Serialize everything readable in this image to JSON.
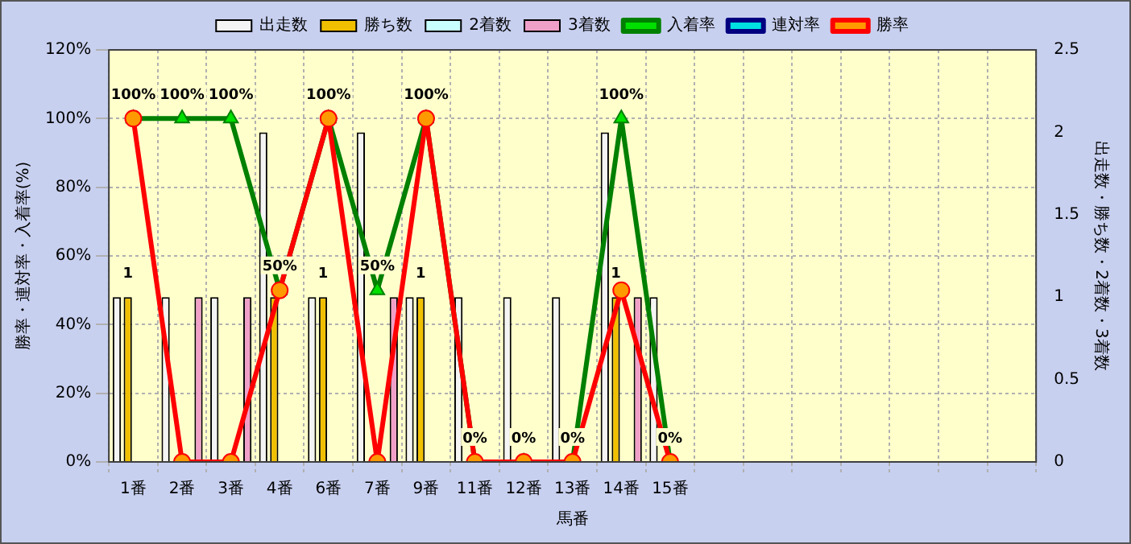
{
  "chart_data": {
    "type": "bar",
    "xlabel": "馬番",
    "ylabel": "勝率・連対率・入着率(%)",
    "y2label": "出走数・勝ち数・2着数・3着数",
    "categories": [
      "1番",
      "2番",
      "3番",
      "4番",
      "6番",
      "7番",
      "9番",
      "11番",
      "12番",
      "13番",
      "14番",
      "15番",
      null,
      null,
      null,
      null,
      null,
      null,
      null
    ],
    "series": [
      {
        "name": "出走数",
        "axis": "y2",
        "color": "#f4f4f4",
        "values": [
          1,
          1,
          1,
          2,
          1,
          2,
          1,
          1,
          1,
          1,
          2,
          1,
          null,
          null,
          null,
          null,
          null,
          null,
          null
        ]
      },
      {
        "name": "勝ち数",
        "axis": "y2",
        "color": "#f0c000",
        "values": [
          1,
          0,
          0,
          1,
          1,
          0,
          1,
          0,
          0,
          0,
          1,
          0,
          null,
          null,
          null,
          null,
          null,
          null,
          null
        ],
        "value_labels": [
          "1",
          null,
          null,
          null,
          "1",
          null,
          "1",
          null,
          null,
          null,
          "1",
          null,
          null,
          null,
          null,
          null,
          null,
          null,
          null
        ]
      },
      {
        "name": "2着数",
        "axis": "y2",
        "color": "#c8ffff",
        "values": [
          0,
          0,
          0,
          0,
          0,
          0,
          0,
          0,
          0,
          0,
          0,
          0,
          null,
          null,
          null,
          null,
          null,
          null,
          null
        ]
      },
      {
        "name": "3着数",
        "axis": "y2",
        "color": "#f0a0c8",
        "values": [
          0,
          1,
          1,
          0,
          0,
          1,
          0,
          0,
          0,
          0,
          1,
          0,
          null,
          null,
          null,
          null,
          null,
          null,
          null
        ]
      },
      {
        "name": "入着率",
        "type": "line",
        "color": "#008000",
        "marker": "triangle",
        "values": [
          100,
          100,
          100,
          50,
          100,
          50,
          100,
          0,
          0,
          0,
          100,
          0,
          null,
          null,
          null,
          null,
          null,
          null,
          null
        ],
        "value_labels": [
          "100%",
          "100%",
          "100%",
          "50%",
          "100%",
          "50%",
          "100%",
          "0%",
          "0%",
          "0%",
          "100%",
          "0%",
          null,
          null,
          null,
          null,
          null,
          null,
          null
        ]
      },
      {
        "name": "連対率",
        "type": "line",
        "color": "#000080",
        "marker": "diamond",
        "values": [
          null,
          null,
          null,
          null,
          null,
          null,
          null,
          null,
          null,
          null,
          null,
          null,
          null,
          null,
          null,
          null,
          null,
          null,
          null
        ]
      },
      {
        "name": "勝率",
        "type": "line",
        "color": "#ff0000",
        "marker": "circle",
        "values": [
          100,
          0,
          0,
          50,
          100,
          0,
          100,
          0,
          0,
          0,
          50,
          0,
          null,
          null,
          null,
          null,
          null,
          null,
          null
        ]
      }
    ],
    "ylim": [
      0,
      120
    ],
    "yticks": [
      {
        "value": 0,
        "label": "0%"
      },
      {
        "value": 20,
        "label": "20%"
      },
      {
        "value": 40,
        "label": "40%"
      },
      {
        "value": 60,
        "label": "60%"
      },
      {
        "value": 80,
        "label": "80%"
      },
      {
        "value": 100,
        "label": "100%"
      },
      {
        "value": 120,
        "label": "120%"
      }
    ],
    "y2lim": [
      0,
      2.5
    ],
    "y2ticks": [
      0,
      0.5,
      1,
      1.5,
      2,
      2.5
    ],
    "grid": true,
    "legend": "top"
  }
}
